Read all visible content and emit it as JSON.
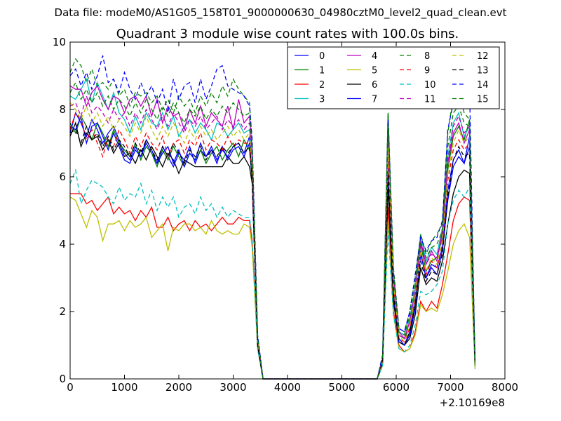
{
  "figure": {
    "suptitle": "Data file: modeM0/AS1G05_158T01_9000000630_04980cztM0_level2_quad_clean.evt"
  },
  "chart_data": {
    "type": "line",
    "title": "Quadrant 3 module wise count rates with 100.0s bins.",
    "xlabel": "",
    "ylabel": "",
    "x_offset_label": "+2.10169e8",
    "xlim": [
      0,
      8000
    ],
    "ylim": [
      0,
      10
    ],
    "xticks": [
      0,
      1000,
      2000,
      3000,
      4000,
      5000,
      6000,
      7000,
      8000
    ],
    "yticks": [
      0,
      2,
      4,
      6,
      8,
      10
    ],
    "grid": false,
    "legend": {
      "placement": "top-right",
      "columns": 4
    },
    "x": [
      0,
      100,
      200,
      300,
      400,
      500,
      600,
      700,
      800,
      900,
      1000,
      1100,
      1200,
      1300,
      1400,
      1500,
      1600,
      1700,
      1800,
      1900,
      2000,
      2100,
      2200,
      2300,
      2400,
      2500,
      2600,
      2700,
      2800,
      2900,
      3000,
      3100,
      3200,
      3300,
      3350,
      3450,
      3550,
      5550,
      5650,
      5750,
      5850,
      5950,
      6050,
      6150,
      6250,
      6350,
      6450,
      6550,
      6650,
      6750,
      6850,
      6950,
      7050,
      7150,
      7250,
      7350,
      7450
    ],
    "series": [
      {
        "name": "0",
        "color": "#0000ff",
        "dash": "solid",
        "values": [
          7.3,
          7.9,
          7.6,
          7.2,
          7.7,
          7.4,
          7.0,
          7.3,
          7.5,
          7.1,
          6.7,
          6.5,
          6.9,
          6.6,
          7.0,
          6.7,
          6.4,
          6.9,
          6.6,
          6.3,
          6.7,
          6.5,
          6.9,
          6.4,
          6.8,
          6.6,
          6.9,
          6.5,
          6.8,
          6.6,
          6.9,
          7.0,
          6.7,
          7.2,
          6.0,
          1.0,
          0,
          0,
          0,
          0.5,
          6.5,
          2.5,
          1.2,
          1.0,
          1.4,
          2.2,
          3.8,
          3.0,
          3.4,
          3.3,
          3.9,
          5.6,
          6.5,
          6.8,
          6.4,
          7.2,
          0.4
        ]
      },
      {
        "name": "1",
        "color": "#008000",
        "dash": "solid",
        "values": [
          7.6,
          7.3,
          7.8,
          7.5,
          7.1,
          7.6,
          7.3,
          6.9,
          7.4,
          7.0,
          6.8,
          6.6,
          7.0,
          6.5,
          6.9,
          6.7,
          6.3,
          6.8,
          6.5,
          6.9,
          6.6,
          6.3,
          6.7,
          6.5,
          6.8,
          6.4,
          6.7,
          6.9,
          6.5,
          6.8,
          7.0,
          6.6,
          7.1,
          6.8,
          5.9,
          1.1,
          0,
          0,
          0,
          0.6,
          7.9,
          2.8,
          1.3,
          1.2,
          1.5,
          2.4,
          4.0,
          3.2,
          3.5,
          3.6,
          4.2,
          6.2,
          7.2,
          7.5,
          7.1,
          7.7,
          0.5
        ]
      },
      {
        "name": "2",
        "color": "#ff0000",
        "dash": "solid",
        "values": [
          5.5,
          5.5,
          5.5,
          5.2,
          5.3,
          5.0,
          5.2,
          5.4,
          4.9,
          5.1,
          4.9,
          5.0,
          4.7,
          5.0,
          4.8,
          5.1,
          4.5,
          4.5,
          4.8,
          4.4,
          4.6,
          4.7,
          4.4,
          4.7,
          4.5,
          4.6,
          4.4,
          4.6,
          4.8,
          4.6,
          4.6,
          4.8,
          4.7,
          4.7,
          4.1,
          0.9,
          0,
          0,
          0,
          0.4,
          5.1,
          2.0,
          1.0,
          0.8,
          0.9,
          1.4,
          2.3,
          2.0,
          2.3,
          2.1,
          2.8,
          3.7,
          4.7,
          5.2,
          5.4,
          5.3,
          0.4
        ]
      },
      {
        "name": "3",
        "color": "#00bfbf",
        "dash": "solid",
        "values": [
          8.4,
          8.3,
          8.6,
          8.9,
          8.2,
          8.8,
          8.4,
          8.0,
          8.5,
          7.9,
          7.7,
          7.3,
          7.8,
          7.4,
          7.9,
          7.6,
          7.5,
          7.9,
          7.4,
          7.8,
          7.2,
          7.5,
          7.7,
          7.3,
          7.6,
          7.4,
          7.1,
          7.6,
          7.5,
          7.2,
          7.4,
          7.6,
          7.3,
          7.4,
          6.5,
          1.2,
          0,
          0,
          0,
          0.6,
          7.4,
          3.0,
          1.4,
          1.3,
          1.8,
          2.7,
          4.3,
          3.5,
          3.9,
          3.7,
          4.5,
          6.6,
          7.6,
          7.9,
          7.2,
          7.5,
          0.3
        ]
      },
      {
        "name": "4",
        "color": "#bf00bf",
        "dash": "solid",
        "values": [
          8.7,
          8.6,
          8.6,
          8.1,
          8.5,
          8.7,
          8.3,
          8.0,
          8.4,
          8.3,
          7.9,
          8.3,
          8.4,
          8.1,
          8.4,
          7.8,
          8.3,
          7.6,
          8.1,
          7.8,
          7.9,
          7.4,
          8.0,
          7.6,
          8.1,
          7.5,
          7.9,
          7.7,
          7.5,
          8.1,
          7.4,
          8.3,
          7.6,
          7.8,
          6.8,
          1.2,
          0,
          0,
          0,
          0.6,
          7.4,
          3.1,
          1.4,
          1.2,
          1.7,
          2.6,
          4.1,
          3.4,
          3.8,
          3.5,
          4.4,
          6.4,
          7.3,
          7.6,
          7.0,
          7.4,
          0.4
        ]
      },
      {
        "name": "5",
        "color": "#bfbf00",
        "dash": "solid",
        "values": [
          5.4,
          5.3,
          4.9,
          4.5,
          5.0,
          4.8,
          4.1,
          4.6,
          4.6,
          4.7,
          4.4,
          4.7,
          4.5,
          4.6,
          4.8,
          4.2,
          4.4,
          4.6,
          3.8,
          4.5,
          4.4,
          4.6,
          4.6,
          4.4,
          4.5,
          4.3,
          4.7,
          4.4,
          4.3,
          4.4,
          4.3,
          4.3,
          4.6,
          4.5,
          3.9,
          0.9,
          0,
          0,
          0,
          0.4,
          4.7,
          1.9,
          0.9,
          0.8,
          0.9,
          1.3,
          2.2,
          2.0,
          2.1,
          2.0,
          2.5,
          3.2,
          4.0,
          4.4,
          4.6,
          4.2,
          0.3
        ]
      },
      {
        "name": "6",
        "color": "#000000",
        "dash": "solid",
        "values": [
          7.2,
          7.6,
          6.9,
          7.3,
          7.1,
          7.2,
          6.8,
          7.1,
          6.7,
          7.0,
          6.6,
          6.7,
          6.4,
          6.8,
          6.5,
          6.9,
          6.6,
          6.3,
          6.7,
          6.5,
          6.1,
          6.5,
          6.4,
          6.3,
          6.3,
          6.3,
          6.3,
          6.3,
          6.3,
          6.6,
          6.4,
          6.4,
          6.6,
          6.3,
          5.8,
          1.0,
          0,
          0,
          0,
          0.5,
          5.7,
          2.3,
          1.1,
          1.0,
          1.2,
          1.9,
          3.3,
          2.8,
          3.0,
          2.9,
          3.5,
          4.6,
          5.5,
          6.0,
          6.2,
          6.1,
          0.4
        ]
      },
      {
        "name": "7",
        "color": "#0000ff",
        "dash": "solid",
        "values": [
          7.5,
          7.4,
          7.8,
          7.0,
          7.5,
          7.6,
          7.2,
          6.8,
          7.3,
          6.9,
          6.5,
          6.4,
          6.8,
          6.6,
          7.1,
          6.8,
          6.4,
          6.7,
          6.9,
          6.4,
          6.8,
          6.3,
          6.7,
          6.5,
          7.0,
          6.6,
          6.8,
          6.4,
          6.9,
          6.5,
          6.8,
          6.9,
          6.6,
          7.0,
          5.9,
          1.0,
          0,
          0,
          0,
          0.5,
          6.3,
          2.5,
          1.1,
          1.0,
          1.3,
          2.1,
          3.7,
          3.0,
          3.3,
          3.1,
          3.8,
          5.3,
          6.3,
          6.6,
          6.4,
          6.9,
          0.4
        ]
      },
      {
        "name": "8",
        "color": "#008000",
        "dash": "dashed",
        "values": [
          9.1,
          9.5,
          9.3,
          8.8,
          9.2,
          8.7,
          8.8,
          8.6,
          8.9,
          8.4,
          8.6,
          8.1,
          8.5,
          8.4,
          8.5,
          8.2,
          8.4,
          8.0,
          8.3,
          7.9,
          8.4,
          8.1,
          8.3,
          7.9,
          8.4,
          8.1,
          8.5,
          8.2,
          8.7,
          8.4,
          8.9,
          8.6,
          8.4,
          8.2,
          7.0,
          1.3,
          0,
          0,
          0,
          0.7,
          7.9,
          3.3,
          1.5,
          1.4,
          2.0,
          3.0,
          4.3,
          3.7,
          4.1,
          4.3,
          4.6,
          7.3,
          8.4,
          8.6,
          7.9,
          7.7,
          0.5
        ]
      },
      {
        "name": "9",
        "color": "#ff0000",
        "dash": "dashed",
        "values": [
          7.4,
          7.9,
          7.7,
          7.1,
          7.4,
          7.0,
          6.6,
          7.2,
          6.9,
          7.4,
          7.1,
          6.7,
          7.2,
          6.9,
          7.3,
          7.0,
          6.8,
          7.2,
          6.6,
          7.0,
          7.1,
          6.7,
          7.1,
          6.9,
          7.3,
          6.8,
          7.1,
          7.0,
          6.8,
          7.2,
          6.9,
          7.1,
          7.0,
          7.0,
          6.1,
          1.1,
          0,
          0,
          0,
          0.5,
          6.6,
          2.7,
          1.2,
          1.1,
          1.5,
          2.4,
          3.8,
          3.1,
          3.5,
          3.3,
          4.0,
          5.9,
          6.8,
          7.1,
          6.8,
          7.0,
          0.4
        ]
      },
      {
        "name": "10",
        "color": "#00bfbf",
        "dash": "dashed",
        "values": [
          5.8,
          6.2,
          5.2,
          5.6,
          5.9,
          5.8,
          5.7,
          5.4,
          5.2,
          5.7,
          5.3,
          5.5,
          5.4,
          5.8,
          5.2,
          5.6,
          5.0,
          5.4,
          5.1,
          5.4,
          4.8,
          5.1,
          5.2,
          4.9,
          5.4,
          5.0,
          5.2,
          4.8,
          5.1,
          4.8,
          5.0,
          4.9,
          4.8,
          4.8,
          4.2,
          0.9,
          0,
          0,
          0,
          0.4,
          4.4,
          1.9,
          0.9,
          0.8,
          1.0,
          1.6,
          2.6,
          2.5,
          2.6,
          2.8,
          3.2,
          4.6,
          5.3,
          5.6,
          5.4,
          5.7,
          0.3
        ]
      },
      {
        "name": "11",
        "color": "#bf00bf",
        "dash": "dashed",
        "values": [
          8.1,
          8.2,
          7.8,
          8.4,
          7.9,
          8.1,
          7.9,
          7.6,
          8.0,
          7.7,
          7.9,
          7.5,
          7.9,
          7.6,
          8.0,
          7.7,
          7.4,
          7.8,
          7.5,
          7.9,
          7.6,
          7.3,
          7.7,
          7.5,
          7.8,
          7.4,
          7.6,
          7.8,
          7.4,
          7.7,
          7.5,
          7.7,
          7.4,
          7.6,
          6.5,
          1.2,
          0,
          0,
          0,
          0.6,
          7.2,
          3.0,
          1.3,
          1.2,
          1.7,
          2.6,
          4.0,
          3.4,
          3.7,
          3.6,
          4.3,
          6.5,
          7.5,
          7.8,
          7.3,
          7.5,
          0.4
        ]
      },
      {
        "name": "12",
        "color": "#bfbf00",
        "dash": "dashed",
        "values": [
          8.2,
          8.0,
          7.7,
          8.1,
          7.6,
          7.9,
          7.5,
          7.8,
          7.4,
          7.7,
          7.5,
          7.2,
          7.6,
          7.3,
          7.8,
          7.4,
          7.1,
          7.5,
          7.2,
          7.6,
          7.3,
          7.0,
          7.4,
          7.1,
          7.5,
          7.2,
          7.4,
          7.1,
          7.3,
          7.5,
          7.2,
          7.4,
          7.1,
          7.3,
          6.3,
          1.1,
          0,
          0,
          0,
          0.5,
          6.9,
          2.8,
          1.3,
          1.1,
          1.6,
          2.5,
          3.8,
          3.2,
          3.6,
          3.4,
          4.1,
          6.1,
          7.0,
          7.4,
          7.0,
          7.2,
          0.4
        ]
      },
      {
        "name": "13",
        "color": "#000000",
        "dash": "dashed",
        "values": [
          7.3,
          7.4,
          7.0,
          7.5,
          7.1,
          7.3,
          6.9,
          7.2,
          6.8,
          7.1,
          6.9,
          6.6,
          7.0,
          6.7,
          7.1,
          6.8,
          6.5,
          6.9,
          6.6,
          7.0,
          6.7,
          6.4,
          6.8,
          6.6,
          6.9,
          6.5,
          6.8,
          6.6,
          6.9,
          6.7,
          6.9,
          7.0,
          6.7,
          6.9,
          6.0,
          1.0,
          0,
          0,
          0,
          0.5,
          6.1,
          2.5,
          1.1,
          1.0,
          1.4,
          2.2,
          3.5,
          2.9,
          3.2,
          3.1,
          3.7,
          5.4,
          6.5,
          6.9,
          6.6,
          6.7,
          0.4
        ]
      },
      {
        "name": "14",
        "color": "#0000ff",
        "dash": "dashed",
        "values": [
          9.0,
          9.2,
          8.7,
          9.1,
          8.6,
          9.0,
          9.6,
          8.8,
          8.9,
          8.5,
          9.1,
          8.6,
          8.3,
          8.8,
          8.4,
          8.7,
          8.2,
          8.6,
          7.9,
          8.9,
          8.3,
          8.7,
          8.8,
          8.2,
          8.9,
          8.3,
          8.7,
          9.2,
          9.3,
          8.7,
          8.6,
          8.5,
          8.4,
          8.1,
          7.1,
          1.3,
          0,
          0,
          0,
          0.7,
          7.7,
          3.2,
          1.5,
          1.4,
          2.0,
          3.1,
          4.2,
          3.8,
          4.1,
          4.2,
          4.7,
          7.4,
          8.2,
          8.4,
          8.7,
          8.6,
          0.5
        ]
      },
      {
        "name": "15",
        "color": "#008000",
        "dash": "dashed",
        "values": [
          8.5,
          8.8,
          8.3,
          8.6,
          8.2,
          8.5,
          8.1,
          8.4,
          8.0,
          8.3,
          8.1,
          7.8,
          8.2,
          7.9,
          8.3,
          8.0,
          7.7,
          8.1,
          7.8,
          8.2,
          7.9,
          7.6,
          8.0,
          7.8,
          8.1,
          7.7,
          8.0,
          7.8,
          8.1,
          7.9,
          8.2,
          8.0,
          7.8,
          7.9,
          6.8,
          1.2,
          0,
          0,
          0,
          0.6,
          7.5,
          3.1,
          1.4,
          1.3,
          1.9,
          2.9,
          4.1,
          3.6,
          3.9,
          4.0,
          4.4,
          6.9,
          7.9,
          8.1,
          7.6,
          7.5,
          0.4
        ]
      }
    ]
  }
}
